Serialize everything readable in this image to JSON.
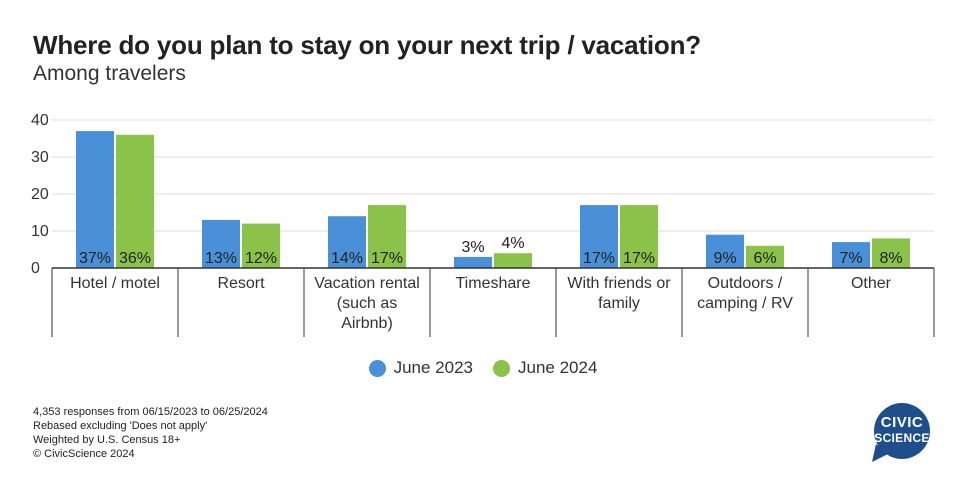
{
  "header": {
    "title": "Where do you plan to stay on your next trip / vacation?",
    "subtitle": "Among travelers"
  },
  "chart_data": {
    "type": "bar",
    "ylim": [
      0,
      40
    ],
    "yticks": [
      0,
      10,
      20,
      30,
      40
    ],
    "grid": true,
    "legend_position": "bottom-center",
    "categories": [
      [
        "Hotel / motel"
      ],
      [
        "Resort"
      ],
      [
        "Vacation rental",
        "(such as",
        "Airbnb)"
      ],
      [
        "Timeshare"
      ],
      [
        "With friends or",
        "family"
      ],
      [
        "Outdoors /",
        "camping / RV"
      ],
      [
        "Other"
      ]
    ],
    "series": [
      {
        "name": "June 2023",
        "color": "#4a90d9",
        "values": [
          37,
          13,
          14,
          3,
          17,
          9,
          7
        ],
        "labels": [
          "37%",
          "13%",
          "14%",
          "3%",
          "17%",
          "9%",
          "7%"
        ]
      },
      {
        "name": "June 2024",
        "color": "#8bc34a",
        "values": [
          36,
          12,
          17,
          4,
          17,
          6,
          8
        ],
        "labels": [
          "36%",
          "12%",
          "17%",
          "4%",
          "17%",
          "6%",
          "8%"
        ]
      }
    ]
  },
  "footnotes": [
    "4,353 responses from 06/15/2023 to 06/25/2024",
    "Rebased excluding 'Does not apply'",
    "Weighted by U.S. Census 18+",
    "© CivicScience 2024"
  ],
  "logo": {
    "line1": "CIVIC",
    "line2": "SCIENCE",
    "color": "#1e4f8c"
  }
}
